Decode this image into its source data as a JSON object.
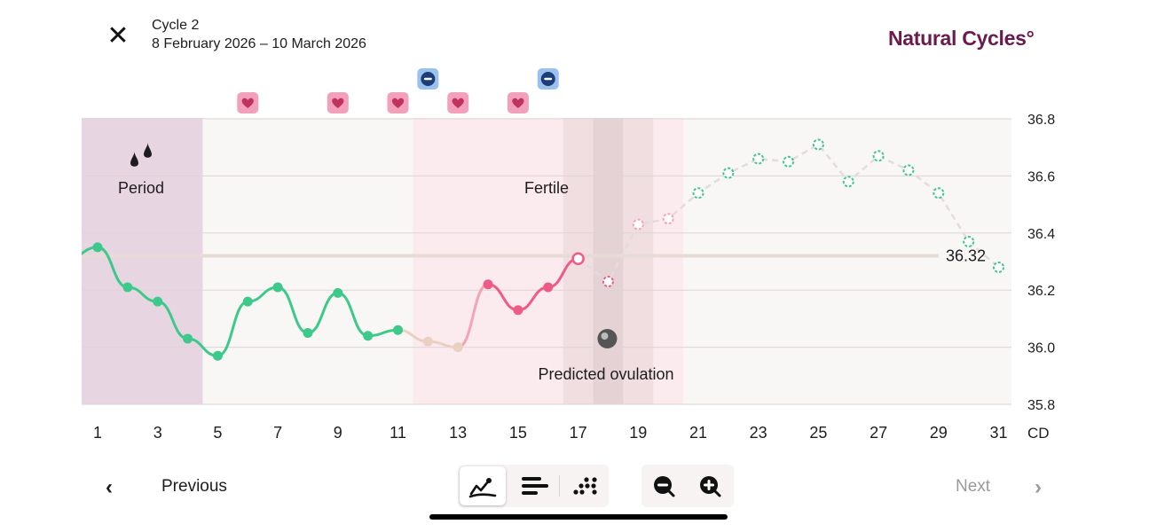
{
  "header": {
    "close_icon": "close-icon",
    "cycle_name": "Cycle 2",
    "cycle_dates": "8 February 2026 – 10 March 2026",
    "brand": "Natural Cycles°"
  },
  "phases": {
    "period_label": "Period",
    "fertile_label": "Fertile",
    "ovulation_label": "Predicted ovulation",
    "period_days": [
      1,
      4
    ],
    "fertile_days": [
      12,
      20
    ],
    "predicted_ovulation_day": 18
  },
  "colors": {
    "brand": "#6a1a4c",
    "normal": "#3dc98a",
    "fertile": "#ef5b87",
    "fertile_light": "#f5a3b6",
    "excluded": "#ead0c0",
    "period_bg": "#e8d5e2",
    "fertile_bg": "#fbeaee",
    "ovulation_bg": "#f0dee1",
    "ovulation_dark": "#e4d2d4",
    "line_predicted": "#e3dcdc",
    "coverline": "#e6dcd5",
    "lh_icon": "#9bc2ef",
    "lh_dark": "#1c3d78",
    "heart_bg": "#f3a0bc",
    "heart": "#c0335f"
  },
  "chart_data": {
    "type": "line",
    "xlabel": "CD",
    "x_ticks": [
      1,
      3,
      5,
      7,
      9,
      11,
      13,
      15,
      17,
      19,
      21,
      23,
      25,
      27,
      29,
      31
    ],
    "y_ticks": [
      36.8,
      36.6,
      36.4,
      36.2,
      36.0,
      35.8
    ],
    "ylim": [
      35.8,
      36.8
    ],
    "xlim": [
      1,
      31
    ],
    "coverline": 36.32,
    "coverline_label": "36.32",
    "measured": [
      {
        "day": 1,
        "temp": 36.35,
        "state": "normal"
      },
      {
        "day": 2,
        "temp": 36.21,
        "state": "normal"
      },
      {
        "day": 3,
        "temp": 36.16,
        "state": "normal"
      },
      {
        "day": 4,
        "temp": 36.03,
        "state": "normal"
      },
      {
        "day": 5,
        "temp": 35.97,
        "state": "normal"
      },
      {
        "day": 6,
        "temp": 36.16,
        "state": "normal"
      },
      {
        "day": 7,
        "temp": 36.21,
        "state": "normal"
      },
      {
        "day": 8,
        "temp": 36.05,
        "state": "normal"
      },
      {
        "day": 9,
        "temp": 36.19,
        "state": "normal"
      },
      {
        "day": 10,
        "temp": 36.04,
        "state": "normal"
      },
      {
        "day": 11,
        "temp": 36.06,
        "state": "normal"
      },
      {
        "day": 12,
        "temp": 36.02,
        "state": "excluded"
      },
      {
        "day": 13,
        "temp": 36.0,
        "state": "excluded"
      },
      {
        "day": 14,
        "temp": 36.22,
        "state": "fertile"
      },
      {
        "day": 15,
        "temp": 36.13,
        "state": "fertile"
      },
      {
        "day": 16,
        "temp": 36.21,
        "state": "fertile"
      },
      {
        "day": 17,
        "temp": 36.31,
        "state": "today"
      }
    ],
    "predicted": [
      {
        "day": 18,
        "temp": 36.23,
        "state": "fertile"
      },
      {
        "day": 19,
        "temp": 36.43,
        "state": "fertile_light"
      },
      {
        "day": 20,
        "temp": 36.45,
        "state": "fertile_light"
      },
      {
        "day": 21,
        "temp": 36.54,
        "state": "normal"
      },
      {
        "day": 22,
        "temp": 36.61,
        "state": "normal"
      },
      {
        "day": 23,
        "temp": 36.66,
        "state": "normal"
      },
      {
        "day": 24,
        "temp": 36.65,
        "state": "normal"
      },
      {
        "day": 25,
        "temp": 36.71,
        "state": "normal"
      },
      {
        "day": 26,
        "temp": 36.58,
        "state": "normal"
      },
      {
        "day": 27,
        "temp": 36.67,
        "state": "normal"
      },
      {
        "day": 28,
        "temp": 36.62,
        "state": "normal"
      },
      {
        "day": 29,
        "temp": 36.54,
        "state": "normal"
      },
      {
        "day": 30,
        "temp": 36.37,
        "state": "normal"
      },
      {
        "day": 31,
        "temp": 36.28,
        "state": "normal"
      }
    ],
    "intercourse_days": [
      6,
      9,
      11,
      13,
      15
    ],
    "lh_test_days": [
      12,
      16
    ],
    "period_icon": "drops-icon",
    "ovulation_icon": "egg-icon"
  },
  "toolbar": {
    "graph_view_icon": "line-graph-icon",
    "bar_view_icon": "bars-icon",
    "dot_view_icon": "dots-icon",
    "zoom_out_icon": "zoom-out-icon",
    "zoom_in_icon": "zoom-in-icon"
  },
  "footer": {
    "previous_label": "Previous",
    "previous_icon": "chevron-left-icon",
    "next_label": "Next",
    "next_icon": "chevron-right-icon",
    "next_color": "#9a9a9a"
  }
}
